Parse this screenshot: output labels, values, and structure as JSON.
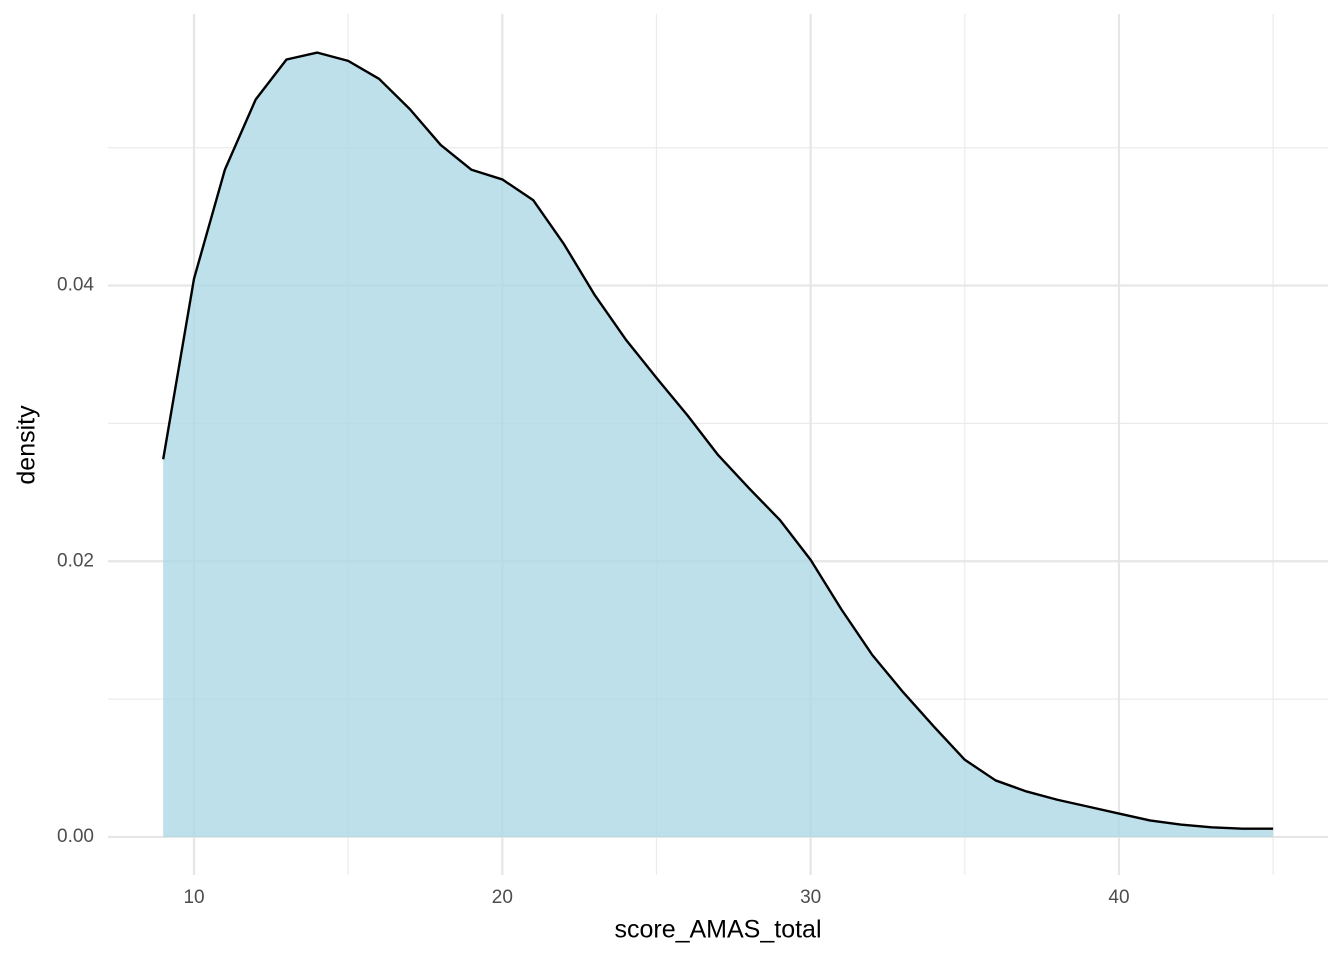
{
  "chart_data": {
    "type": "density",
    "x_label": "score_AMAS_total",
    "y_label": "density",
    "x": [
      9,
      10,
      11,
      12,
      13,
      14,
      15,
      16,
      17,
      18,
      19,
      20,
      21,
      22,
      23,
      24,
      25,
      26,
      27,
      28,
      29,
      30,
      31,
      32,
      33,
      34,
      35,
      36,
      37,
      38,
      39,
      40,
      41,
      42,
      43,
      44,
      45
    ],
    "values": [
      0.0274,
      0.0405,
      0.0484,
      0.0535,
      0.0564,
      0.0569,
      0.0563,
      0.055,
      0.0528,
      0.0502,
      0.0484,
      0.0477,
      0.0462,
      0.043,
      0.0393,
      0.0361,
      0.0333,
      0.0306,
      0.0277,
      0.0253,
      0.023,
      0.0201,
      0.0165,
      0.0132,
      0.0105,
      0.008,
      0.0056,
      0.0041,
      0.0033,
      0.0027,
      0.0022,
      0.0017,
      0.0012,
      0.0009,
      0.0007,
      0.0006,
      0.0006
    ],
    "color": "#000000",
    "fill": "#add8e6",
    "fill_opacity": 0.8,
    "xlim": [
      7.21,
      46.78
    ],
    "ylim": [
      -0.00276,
      0.0597
    ],
    "xticks": [
      10,
      20,
      30,
      40
    ],
    "yticks": [
      {
        "value": 0,
        "label": "0.00"
      },
      0.02,
      0.04
    ],
    "xminor": [
      15,
      25,
      35,
      45
    ],
    "yminor": [
      0.01,
      0.03,
      0.05
    ],
    "grid": true
  }
}
